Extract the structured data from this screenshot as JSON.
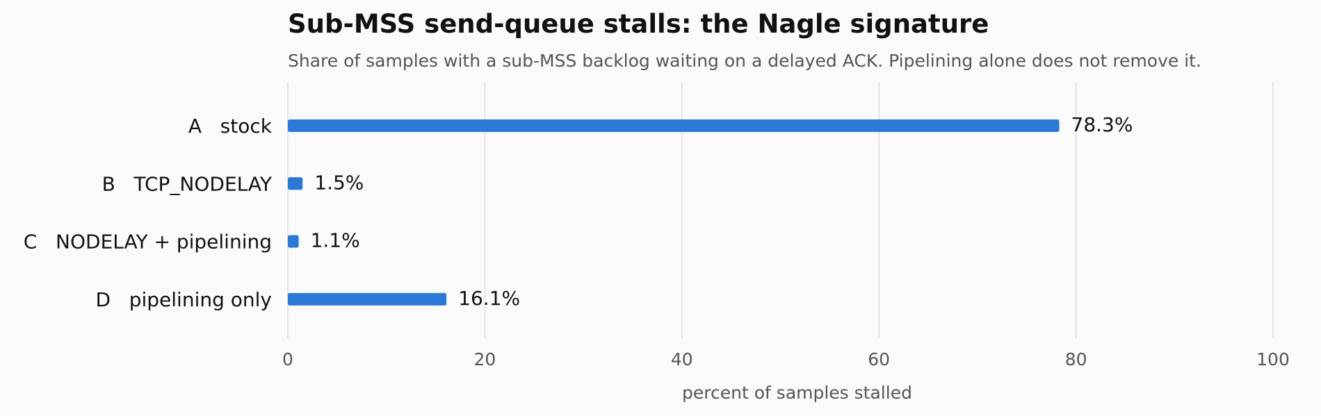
{
  "chart_data": {
    "type": "bar",
    "orientation": "horizontal",
    "title": "Sub-MSS send-queue stalls: the Nagle signature",
    "subtitle": "Share of samples with a sub-MSS backlog waiting on a delayed ACK. Pipelining alone does not remove it.",
    "xlabel": "percent of samples stalled",
    "ylabel": "",
    "xlim": [
      0,
      100
    ],
    "x_ticks": [
      0,
      20,
      40,
      60,
      80,
      100
    ],
    "categories": [
      "A   stock",
      "B   TCP_NODELAY",
      "C   NODELAY + pipelining",
      "D   pipelining only"
    ],
    "values": [
      78.3,
      1.5,
      1.1,
      16.1
    ],
    "value_labels": [
      "78.3%",
      "1.5%",
      "1.1%",
      "16.1%"
    ],
    "bar_color": "#2b78d6",
    "grid": "vertical",
    "legend": "none"
  }
}
